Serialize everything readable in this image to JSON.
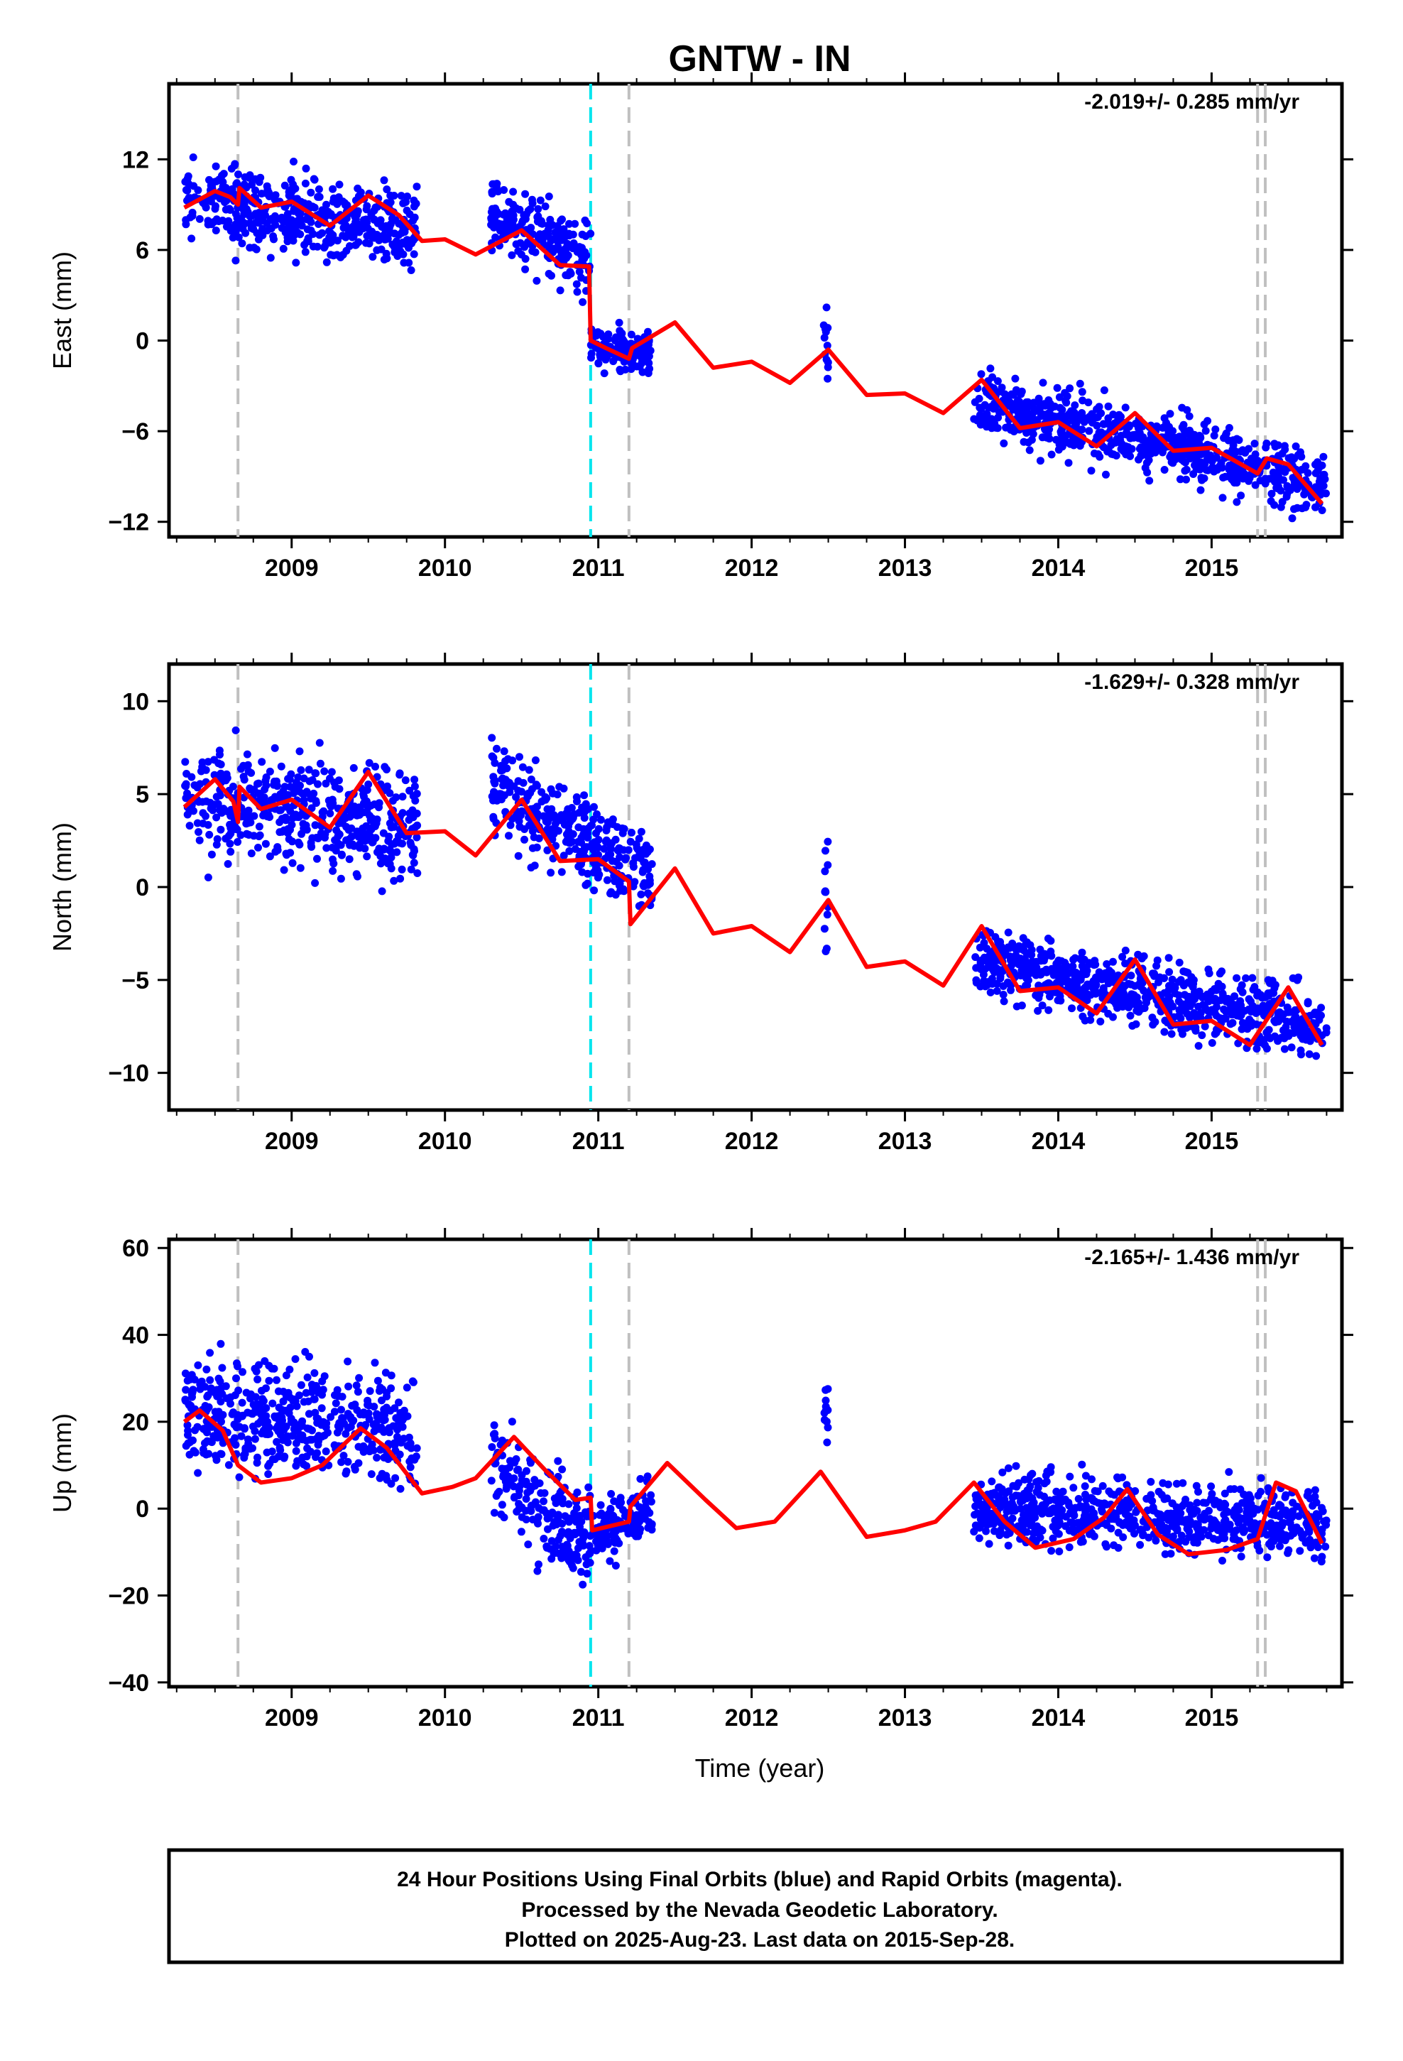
{
  "title": "GNTW - IN",
  "xlabel": "Time (year)",
  "footer": [
    "24 Hour Positions Using Final Orbits (blue) and Rapid Orbits (magenta).",
    "Processed by the Nevada Geodetic Laboratory.",
    "Plotted on 2025-Aug-23. Last data on 2015-Sep-28."
  ],
  "colors": {
    "data": "#0000ff",
    "model": "#ff0000",
    "equipment_change": "#c0c0c0",
    "earthquake": "#00e5ee"
  },
  "chart_data": [
    {
      "type": "scatter",
      "panel": "East",
      "ylabel": "East (mm)",
      "rate_text": "-2.019+/- 0.285 mm/yr",
      "xlim": [
        2008.2,
        2015.85
      ],
      "ylim": [
        -13,
        17
      ],
      "xticks": [
        2009,
        2010,
        2011,
        2012,
        2013,
        2014,
        2015
      ],
      "yticks": [
        -12,
        -6,
        0,
        6,
        12
      ],
      "event_lines": {
        "equipment_change": [
          2008.65,
          2011.2,
          2015.3,
          2015.35
        ],
        "earthquake": [
          2010.95
        ]
      },
      "data_segments": [
        {
          "x": [
            2008.3,
            2009.82
          ],
          "center": [
            9.2,
            7.4
          ],
          "spread": 2.4
        },
        {
          "x": [
            2010.3,
            2010.95
          ],
          "center": [
            8.5,
            5.5
          ],
          "spread": 2.2
        },
        {
          "x": [
            2010.95,
            2011.35
          ],
          "center": [
            -0.3,
            -1.0
          ],
          "spread": 1.2
        },
        {
          "x": [
            2012.47,
            2012.5
          ],
          "center": [
            0.0,
            0.0
          ],
          "spread": 2.5
        },
        {
          "x": [
            2013.45,
            2015.75
          ],
          "center": [
            -4.0,
            -9.5
          ],
          "spread": 1.8
        }
      ],
      "model": {
        "x": [
          2008.3,
          2008.5,
          2008.6,
          2008.65,
          2008.66,
          2008.8,
          2009.0,
          2009.25,
          2009.5,
          2009.7,
          2009.85,
          2010.0,
          2010.2,
          2010.5,
          2010.75,
          2010.94,
          2010.95,
          2011.05,
          2011.2,
          2011.22,
          2011.5,
          2011.75,
          2012.0,
          2012.25,
          2012.5,
          2012.75,
          2013.0,
          2013.25,
          2013.5,
          2013.75,
          2014.0,
          2014.25,
          2014.5,
          2014.75,
          2015.0,
          2015.3,
          2015.36,
          2015.5,
          2015.72
        ],
        "y": [
          8.8,
          9.9,
          9.5,
          9.0,
          10.1,
          8.8,
          9.2,
          7.6,
          9.6,
          8.3,
          6.6,
          6.7,
          5.7,
          7.3,
          5.0,
          4.9,
          0.0,
          -0.5,
          -1.2,
          -0.5,
          1.2,
          -1.8,
          -1.4,
          -2.8,
          -0.6,
          -3.6,
          -3.5,
          -4.8,
          -2.6,
          -5.8,
          -5.4,
          -7.0,
          -4.8,
          -7.3,
          -7.1,
          -8.8,
          -7.8,
          -8.2,
          -10.8
        ]
      }
    },
    {
      "type": "scatter",
      "panel": "North",
      "ylabel": "North (mm)",
      "rate_text": "-1.629+/- 0.328 mm/yr",
      "xlim": [
        2008.2,
        2015.85
      ],
      "ylim": [
        -12,
        12
      ],
      "xticks": [
        2009,
        2010,
        2011,
        2012,
        2013,
        2014,
        2015
      ],
      "yticks": [
        -10,
        -5,
        0,
        5,
        10
      ],
      "event_lines": {
        "equipment_change": [
          2008.65,
          2011.2,
          2015.3,
          2015.35
        ],
        "earthquake": [
          2010.95
        ]
      },
      "data_segments": [
        {
          "x": [
            2008.3,
            2009.82
          ],
          "center": [
            4.8,
            3.2
          ],
          "spread": 2.6
        },
        {
          "x": [
            2010.3,
            2011.35
          ],
          "center": [
            5.5,
            0.5
          ],
          "spread": 2.0
        },
        {
          "x": [
            2012.47,
            2012.5
          ],
          "center": [
            0.0,
            0.0
          ],
          "spread": 2.5
        },
        {
          "x": [
            2013.45,
            2015.75
          ],
          "center": [
            -4.0,
            -7.5
          ],
          "spread": 1.6
        }
      ],
      "model": {
        "x": [
          2008.3,
          2008.5,
          2008.62,
          2008.65,
          2008.66,
          2008.8,
          2009.0,
          2009.25,
          2009.5,
          2009.75,
          2010.0,
          2010.2,
          2010.5,
          2010.75,
          2011.0,
          2011.2,
          2011.21,
          2011.5,
          2011.75,
          2012.0,
          2012.25,
          2012.5,
          2012.75,
          2013.0,
          2013.25,
          2013.5,
          2013.75,
          2014.0,
          2014.25,
          2014.5,
          2014.75,
          2015.0,
          2015.25,
          2015.5,
          2015.72
        ],
        "y": [
          4.3,
          5.8,
          4.6,
          3.5,
          5.4,
          4.2,
          4.7,
          3.2,
          6.2,
          2.9,
          3.0,
          1.7,
          4.7,
          1.4,
          1.5,
          0.3,
          -2.0,
          1.0,
          -2.5,
          -2.1,
          -3.5,
          -0.7,
          -4.3,
          -4.0,
          -5.3,
          -2.1,
          -5.6,
          -5.4,
          -6.8,
          -3.9,
          -7.4,
          -7.2,
          -8.5,
          -5.4,
          -8.5
        ]
      }
    },
    {
      "type": "scatter",
      "panel": "Up",
      "ylabel": "Up (mm)",
      "rate_text": "-2.165+/- 1.436 mm/yr",
      "xlim": [
        2008.2,
        2015.85
      ],
      "ylim": [
        -41,
        62
      ],
      "xticks": [
        2009,
        2010,
        2011,
        2012,
        2013,
        2014,
        2015
      ],
      "yticks": [
        -40,
        -20,
        0,
        20,
        40,
        60
      ],
      "event_lines": {
        "equipment_change": [
          2008.65,
          2011.2,
          2015.3,
          2015.35
        ],
        "earthquake": [
          2010.95
        ]
      },
      "data_segments": [
        {
          "x": [
            2008.3,
            2009.82
          ],
          "center": [
            22.0,
            18.0
          ],
          "spread": 11.0
        },
        {
          "x": [
            2010.3,
            2010.95
          ],
          "center": [
            10.0,
            -8.0
          ],
          "spread": 10.0
        },
        {
          "x": [
            2010.95,
            2011.35
          ],
          "center": [
            -6.0,
            0.0
          ],
          "spread": 6.0
        },
        {
          "x": [
            2012.47,
            2012.5
          ],
          "center": [
            20.0,
            20.0
          ],
          "spread": 8.0
        },
        {
          "x": [
            2013.45,
            2015.75
          ],
          "center": [
            0.0,
            -4.0
          ],
          "spread": 7.0
        }
      ],
      "model": {
        "x": [
          2008.3,
          2008.4,
          2008.55,
          2008.65,
          2008.8,
          2009.0,
          2009.2,
          2009.45,
          2009.62,
          2009.85,
          2010.05,
          2010.2,
          2010.45,
          2010.65,
          2010.85,
          2010.95,
          2010.96,
          2011.2,
          2011.21,
          2011.45,
          2011.7,
          2011.9,
          2012.15,
          2012.45,
          2012.75,
          2013.0,
          2013.2,
          2013.45,
          2013.65,
          2013.85,
          2014.1,
          2014.3,
          2014.45,
          2014.65,
          2014.85,
          2015.1,
          2015.3,
          2015.42,
          2015.55,
          2015.72
        ],
        "y": [
          20.0,
          22.6,
          18.0,
          10.0,
          6.0,
          7.0,
          10.0,
          18.5,
          14.0,
          3.5,
          5.0,
          7.0,
          16.5,
          9.0,
          2.0,
          2.5,
          -5.0,
          -3.0,
          0.5,
          10.5,
          2.0,
          -4.5,
          -3.0,
          8.5,
          -6.5,
          -5.0,
          -3.0,
          6.0,
          -3.0,
          -9.0,
          -7.0,
          -2.0,
          4.5,
          -6.0,
          -10.5,
          -9.5,
          -7.0,
          6.0,
          4.0,
          -8.0
        ]
      }
    }
  ]
}
